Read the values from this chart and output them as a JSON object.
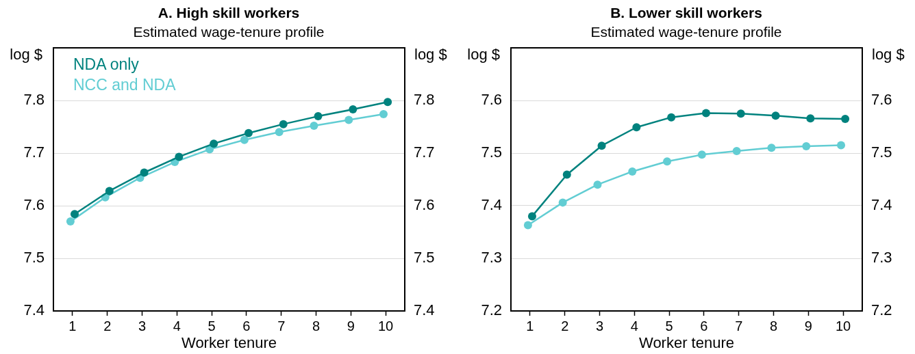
{
  "chart_data": [
    {
      "type": "line",
      "title": "A. High skill workers",
      "subtitle": "Estimated wage-tenure profile",
      "xlabel": "Worker tenure",
      "ylabel": "log $",
      "y2label": "log $",
      "xlim": [
        0.45,
        10.55
      ],
      "xticks": [
        1,
        2,
        3,
        4,
        5,
        6,
        7,
        8,
        9,
        10
      ],
      "ylim": [
        7.4,
        7.9
      ],
      "yticks": [
        7.4,
        7.5,
        7.6,
        7.7,
        7.8
      ],
      "y2lim": [
        7.4,
        7.9
      ],
      "y2ticks": [
        7.4,
        7.5,
        7.6,
        7.7,
        7.8
      ],
      "grid": "y",
      "legend": "top left",
      "marker": "circle",
      "series": [
        {
          "name": "NDA only",
          "color": "#00827e",
          "x": [
            1.06,
            2.06,
            3.06,
            4.06,
            5.06,
            6.06,
            7.06,
            8.06,
            9.06,
            10.06
          ],
          "values": [
            7.584,
            7.628,
            7.663,
            7.693,
            7.718,
            7.738,
            7.755,
            7.77,
            7.783,
            7.797
          ]
        },
        {
          "name": "NCC and NDA",
          "color": "#62cdd3",
          "x": [
            0.94,
            1.94,
            2.94,
            3.94,
            4.94,
            5.94,
            6.94,
            7.94,
            8.94,
            9.94
          ],
          "values": [
            7.57,
            7.616,
            7.653,
            7.683,
            7.707,
            7.725,
            7.74,
            7.752,
            7.763,
            7.774
          ]
        }
      ]
    },
    {
      "type": "line",
      "title": "B. Lower skill workers",
      "subtitle": "Estimated wage-tenure profile",
      "xlabel": "Worker tenure",
      "ylabel": "log $",
      "y2label": "log $",
      "xlim": [
        0.45,
        10.55
      ],
      "xticks": [
        1,
        2,
        3,
        4,
        5,
        6,
        7,
        8,
        9,
        10
      ],
      "ylim": [
        7.2,
        7.7
      ],
      "yticks": [
        7.2,
        7.3,
        7.4,
        7.5,
        7.6
      ],
      "y2lim": [
        7.2,
        7.7
      ],
      "y2ticks": [
        7.2,
        7.3,
        7.4,
        7.5,
        7.6
      ],
      "grid": "y",
      "marker": "circle",
      "series": [
        {
          "color": "#00827e",
          "x": [
            1.06,
            2.06,
            3.06,
            4.06,
            5.06,
            6.06,
            7.06,
            8.06,
            9.06,
            10.06
          ],
          "values": [
            7.38,
            7.459,
            7.514,
            7.549,
            7.568,
            7.576,
            7.575,
            7.571,
            7.566,
            7.565
          ]
        },
        {
          "color": "#62cdd3",
          "x": [
            0.94,
            1.94,
            2.94,
            3.94,
            4.94,
            5.94,
            6.94,
            7.94,
            8.94,
            9.94
          ],
          "values": [
            7.363,
            7.406,
            7.44,
            7.465,
            7.484,
            7.497,
            7.504,
            7.51,
            7.513,
            7.515
          ]
        }
      ]
    }
  ]
}
